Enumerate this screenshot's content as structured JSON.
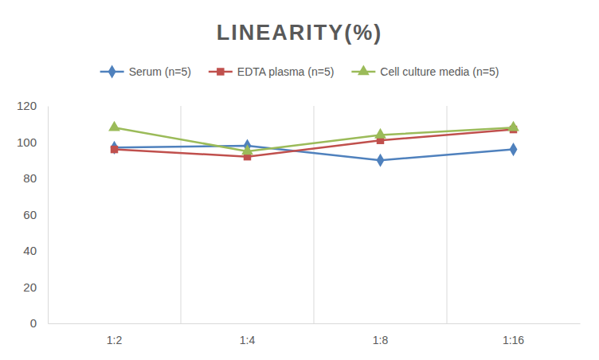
{
  "chart_data": {
    "type": "line",
    "title": "LINEARITY(%)",
    "categories": [
      "1:2",
      "1:4",
      "1:8",
      "1:16"
    ],
    "series": [
      {
        "name": "Serum (n=5)",
        "color": "#4f81bd",
        "marker": "diamond",
        "values": [
          97,
          98,
          90,
          96
        ]
      },
      {
        "name": "EDTA plasma (n=5)",
        "color": "#c0504d",
        "marker": "square",
        "values": [
          96,
          92,
          101,
          107
        ]
      },
      {
        "name": "Cell culture media (n=5)",
        "color": "#9bbb59",
        "marker": "triangle",
        "values": [
          108,
          95,
          104,
          108
        ]
      }
    ],
    "ylim": [
      0,
      120
    ],
    "yticks": [
      0,
      20,
      40,
      60,
      80,
      100,
      120
    ],
    "grid": true,
    "legend": "top"
  }
}
